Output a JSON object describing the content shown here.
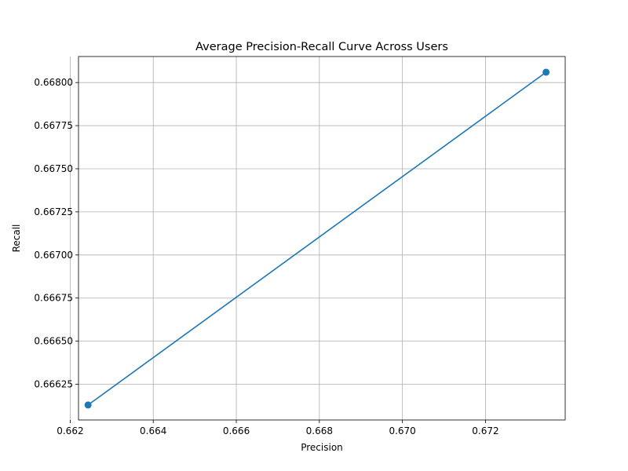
{
  "chart_data": {
    "type": "line",
    "title": "Average Precision-Recall Curve Across Users",
    "xlabel": "Precision",
    "ylabel": "Recall",
    "xlim": [
      0.6622,
      0.67392
    ],
    "ylim": [
      0.666043,
      0.668151
    ],
    "xticks": [
      0.662,
      0.664,
      0.666,
      0.668,
      0.67,
      0.672
    ],
    "xtick_labels": [
      "0.662",
      "0.664",
      "0.666",
      "0.668",
      "0.670",
      "0.672"
    ],
    "yticks": [
      0.66625,
      0.6665,
      0.66675,
      0.667,
      0.66725,
      0.6675,
      0.66775,
      0.668
    ],
    "ytick_labels": [
      "0.66625",
      "0.66650",
      "0.66675",
      "0.66700",
      "0.66725",
      "0.66750",
      "0.66775",
      "0.66800"
    ],
    "grid": true,
    "series": [
      {
        "color": "#1f77b4",
        "marker": "circle",
        "x": [
          0.66243,
          0.67346
        ],
        "y": [
          0.66613,
          0.66806
        ]
      }
    ]
  }
}
